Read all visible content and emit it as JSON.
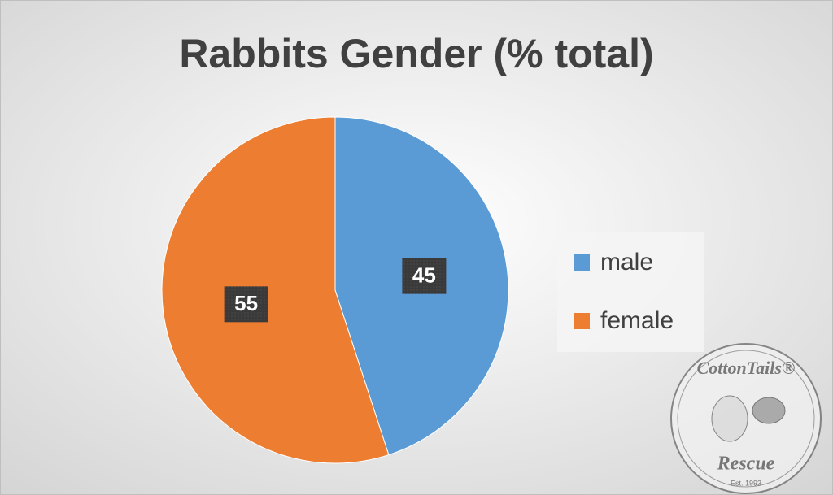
{
  "chart_data": {
    "type": "pie",
    "title": "Rabbits Gender (% total)",
    "categories": [
      "male",
      "female"
    ],
    "values": [
      45,
      55
    ],
    "colors": [
      "#5b9bd5",
      "#ed7d31"
    ],
    "legend": "right"
  },
  "logo": {
    "name": "CottonTails®",
    "tagline": "Rescue",
    "established": "Est. 1993"
  }
}
